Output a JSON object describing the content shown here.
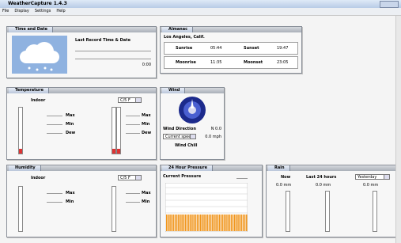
{
  "window": {
    "title": "WeatherCapture 1.4.3"
  },
  "menu": [
    "File",
    "Display",
    "Settings",
    "Help"
  ],
  "time_date": {
    "title": "Time and Date",
    "label": "Last Record Time & Date",
    "value": "0:00"
  },
  "almanac": {
    "title": "Almanac",
    "location": "Los Angeles, Calif.",
    "rows": [
      [
        "Sunrise",
        "05:44",
        "Sunset",
        "19:47"
      ],
      [
        "Moonrise",
        "11:35",
        "Moonset",
        "23:05"
      ]
    ]
  },
  "temperature": {
    "title": "Temperature",
    "indoor": "Indoor",
    "unit": "C/5 F",
    "labels": [
      "Max",
      "Min",
      "Dew"
    ]
  },
  "wind": {
    "title": "Wind",
    "direction_label": "Wind Direction",
    "direction_value": "N 0.0",
    "speed_select": "Current speed",
    "speed_value": "0.0 mph",
    "chill_label": "Wind Chill"
  },
  "humidity": {
    "title": "Humidity",
    "indoor": "Indoor",
    "unit": "C/5 F",
    "labels": [
      "Max",
      "Min"
    ]
  },
  "pressure": {
    "title": "24 Hour Pressure",
    "current_label": "Current Pressure"
  },
  "rain": {
    "title": "Rain",
    "now": "Now",
    "last24": "Last 24 hours",
    "yesterday": "Yesterday",
    "values": [
      "0.0 mm",
      "0.0 mm",
      "0.0 mm"
    ]
  }
}
